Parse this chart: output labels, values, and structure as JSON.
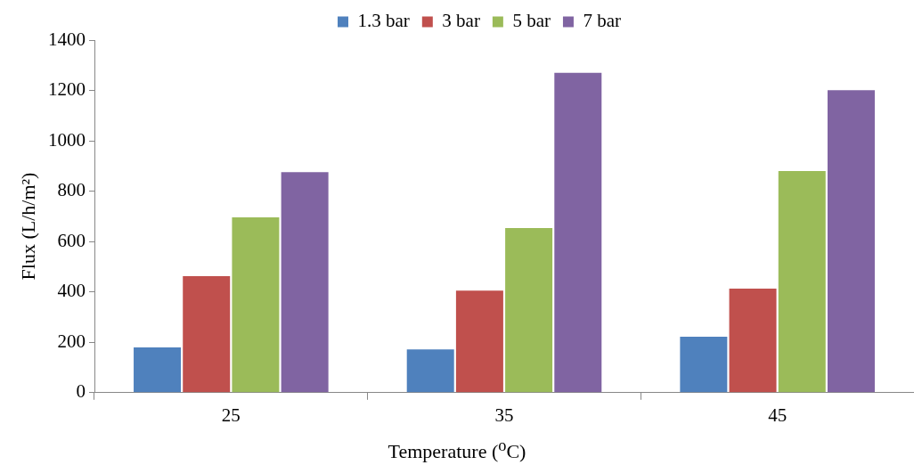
{
  "chart_data": {
    "type": "bar",
    "xlabel": "Temperature ($^{o}$C)",
    "ylabel": "Flux (L/h/m²)",
    "categories": [
      "25",
      "35",
      "45"
    ],
    "series": [
      {
        "name": "1.3 bar",
        "color": "#4f81bd",
        "values": [
          180,
          172,
          222
        ]
      },
      {
        "name": "3 bar",
        "color": "#c0504d",
        "values": [
          463,
          405,
          413
        ]
      },
      {
        "name": "5 bar",
        "color": "#9bbb59",
        "values": [
          696,
          654,
          880
        ]
      },
      {
        "name": "7 bar",
        "color": "#8064a2",
        "values": [
          876,
          1270,
          1201
        ]
      }
    ],
    "ylim": [
      0,
      1400
    ],
    "yticks": [
      0,
      200,
      400,
      600,
      800,
      1000,
      1200,
      1400
    ],
    "grid": false,
    "legend": "top"
  }
}
